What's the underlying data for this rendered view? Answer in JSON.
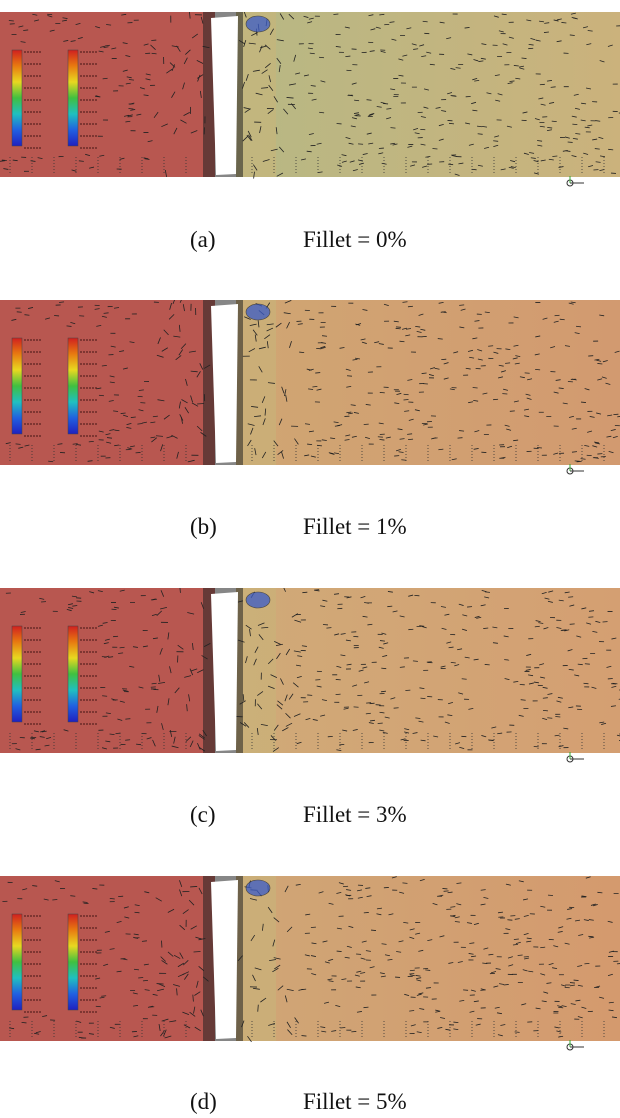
{
  "panels": [
    {
      "label": "(a)",
      "caption": "Fillet = 0%"
    },
    {
      "label": "(b)",
      "caption": "Fillet = 1%"
    },
    {
      "label": "(c)",
      "caption": "Fillet = 3%"
    },
    {
      "label": "(d)",
      "caption": "Fillet = 5%"
    }
  ]
}
